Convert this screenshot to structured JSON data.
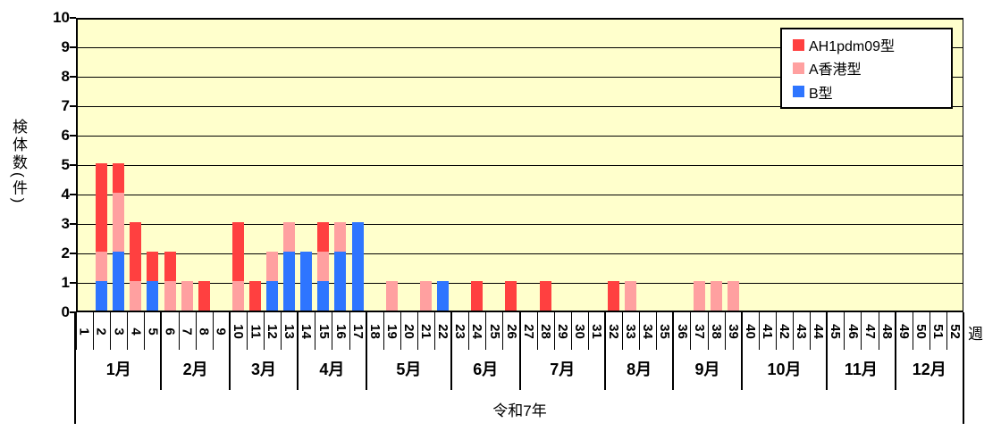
{
  "chart_data": {
    "type": "bar",
    "stacked": true,
    "title": "",
    "ylabel": "検体数(件)",
    "x_unit_label": "週",
    "year_label": "令和7年",
    "ylim": [
      0,
      10
    ],
    "yticks": [
      0,
      1,
      2,
      3,
      4,
      5,
      6,
      7,
      8,
      9,
      10
    ],
    "grid": true,
    "plot_bg_color": "#FFFFCC",
    "legend_position": "top-right",
    "weeks": [
      1,
      2,
      3,
      4,
      5,
      6,
      7,
      8,
      9,
      10,
      11,
      12,
      13,
      14,
      15,
      16,
      17,
      18,
      19,
      20,
      21,
      22,
      23,
      24,
      25,
      26,
      27,
      28,
      29,
      30,
      31,
      32,
      33,
      34,
      35,
      36,
      37,
      38,
      39,
      40,
      41,
      42,
      43,
      44,
      45,
      46,
      47,
      48,
      49,
      50,
      51,
      52
    ],
    "months": [
      {
        "label": "1月",
        "start": 1,
        "end": 5
      },
      {
        "label": "2月",
        "start": 6,
        "end": 9
      },
      {
        "label": "3月",
        "start": 10,
        "end": 13
      },
      {
        "label": "4月",
        "start": 14,
        "end": 17
      },
      {
        "label": "5月",
        "start": 18,
        "end": 22
      },
      {
        "label": "6月",
        "start": 23,
        "end": 26
      },
      {
        "label": "7月",
        "start": 27,
        "end": 31
      },
      {
        "label": "8月",
        "start": 32,
        "end": 35
      },
      {
        "label": "9月",
        "start": 36,
        "end": 39
      },
      {
        "label": "10月",
        "start": 40,
        "end": 44
      },
      {
        "label": "11月",
        "start": 45,
        "end": 48
      },
      {
        "label": "12月",
        "start": 49,
        "end": 52
      }
    ],
    "stack_order_bottom_to_top": [
      "B型",
      "A香港型",
      "AH1pdm09型"
    ],
    "series": [
      {
        "name": "AH1pdm09型",
        "color": "#FF4040",
        "values": [
          0,
          3,
          1,
          2,
          1,
          1,
          0,
          1,
          0,
          2,
          1,
          0,
          0,
          0,
          1,
          0,
          0,
          0,
          0,
          0,
          0,
          0,
          0,
          1,
          0,
          1,
          0,
          1,
          0,
          0,
          0,
          1,
          0,
          0,
          0,
          0,
          0,
          0,
          0,
          0,
          0,
          0,
          0,
          0,
          0,
          0,
          0,
          0,
          0,
          0,
          0,
          0
        ]
      },
      {
        "name": "A香港型",
        "color": "#FFA0A0",
        "values": [
          0,
          1,
          2,
          1,
          0,
          1,
          1,
          0,
          0,
          1,
          0,
          1,
          1,
          0,
          1,
          1,
          0,
          0,
          1,
          0,
          1,
          0,
          0,
          0,
          0,
          0,
          0,
          0,
          0,
          0,
          0,
          0,
          1,
          0,
          0,
          0,
          1,
          1,
          1,
          0,
          0,
          0,
          0,
          0,
          0,
          0,
          0,
          0,
          0,
          0,
          0,
          0
        ]
      },
      {
        "name": "B型",
        "color": "#2E75FF",
        "values": [
          0,
          1,
          2,
          0,
          1,
          0,
          0,
          0,
          0,
          0,
          0,
          1,
          2,
          2,
          1,
          2,
          3,
          0,
          0,
          0,
          0,
          1,
          0,
          0,
          0,
          0,
          0,
          0,
          0,
          0,
          0,
          0,
          0,
          0,
          0,
          0,
          0,
          0,
          0,
          0,
          0,
          0,
          0,
          0,
          0,
          0,
          0,
          0,
          0,
          0,
          0,
          0
        ]
      }
    ]
  }
}
